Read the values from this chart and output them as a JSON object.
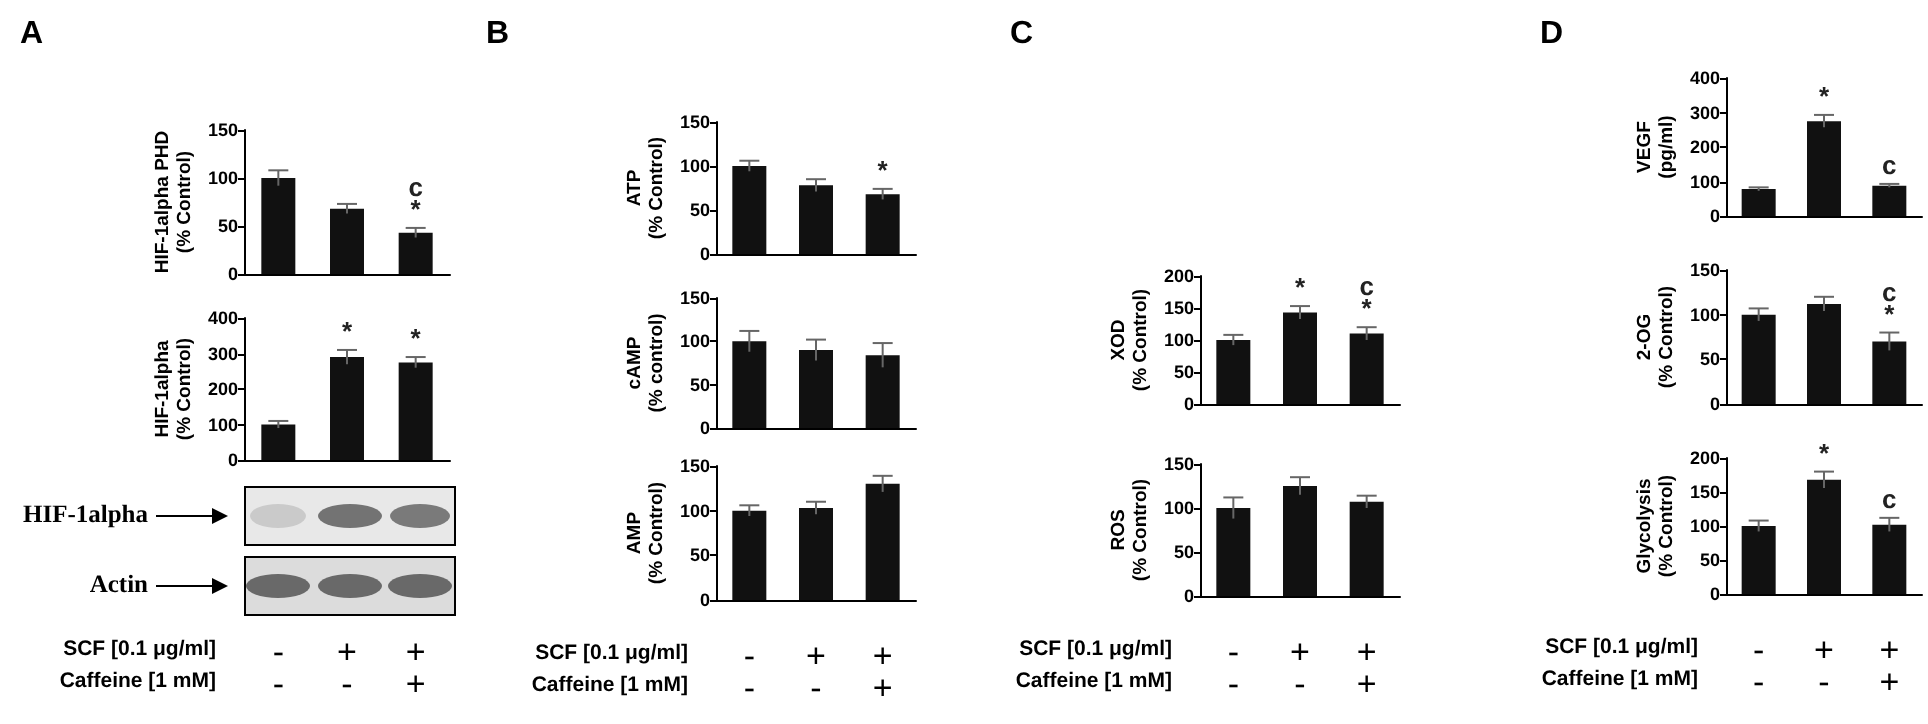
{
  "chart_data": [
    {
      "type": "bar",
      "title": "A",
      "ylabel": "HIF-1alpha PHD\n(% Control)",
      "categories": [
        "-\n-",
        "+\n-",
        "+\n+"
      ],
      "values": [
        100,
        68,
        43
      ],
      "errors": [
        8,
        5,
        5
      ],
      "color": "#111111",
      "ylim": [
        0,
        150
      ],
      "yticks": [
        0,
        50,
        100,
        150
      ],
      "tick_labels": "y",
      "annotations": [
        {
          "text": "*",
          "x": "+\n+",
          "y": 48
        },
        {
          "text": "c",
          "x": "+\n+",
          "y": 48
        }
      ]
    },
    {
      "type": "bar",
      "ylabel": "HIF-1alpha\n(% Control)",
      "categories": [
        "-\n-",
        "+\n-",
        "+\n+"
      ],
      "values": [
        100,
        290,
        275
      ],
      "errors": [
        10,
        20,
        15
      ],
      "color": "#111111",
      "ylim": [
        0,
        400
      ],
      "yticks": [
        0,
        100,
        200,
        300,
        400
      ],
      "annotations": [
        {
          "text": "*",
          "x": "+\n-",
          "y": 310
        },
        {
          "text": "*",
          "x": "+\n+",
          "y": 290
        },
        "HIF-1alpha",
        "Actin",
        "SCF [0.1 μg/ml]",
        "Caffeine [1 mM]"
      ]
    },
    {
      "type": "bar",
      "title": "B",
      "ylabel": "ATP\n(% Control)",
      "categories": [
        "-\n-",
        "+\n-",
        "+\n+"
      ],
      "values": [
        100,
        78,
        68
      ],
      "errors": [
        6,
        7,
        6
      ],
      "color": "#111111",
      "ylim": [
        0,
        150
      ],
      "yticks": [
        0,
        50,
        100,
        150
      ],
      "tick_labels": "y",
      "annotations": [
        {
          "text": "*",
          "x": "+\n+",
          "y": 74
        }
      ]
    },
    {
      "type": "bar",
      "ylabel": "cAMP\n(% control)",
      "categories": [
        "-\n-",
        "+\n-",
        "+\n+"
      ],
      "values": [
        100,
        90,
        84
      ],
      "errors": [
        12,
        12,
        14
      ],
      "color": "#111111",
      "ylim": [
        0,
        150
      ],
      "yticks": [
        0,
        50,
        100,
        150
      ],
      "tick_labels": "y"
    },
    {
      "type": "bar",
      "ylabel": "AMP\n(% Control)",
      "categories": [
        "-\n-",
        "+\n-",
        "+\n+"
      ],
      "values": [
        100,
        103,
        130
      ],
      "errors": [
        6,
        7,
        9
      ],
      "color": "#111111",
      "ylim": [
        0,
        150
      ],
      "yticks": [
        0,
        50,
        100,
        150
      ],
      "annotations": [
        "SCF [0.1 μg/ml]",
        "Caffeine [1 mM]"
      ]
    },
    {
      "type": "bar",
      "title": "C",
      "ylabel": "XOD\n(% Control)",
      "categories": [
        "-\n-",
        "+\n-",
        "+\n+"
      ],
      "values": [
        100,
        143,
        110
      ],
      "errors": [
        8,
        10,
        10
      ],
      "color": "#111111",
      "ylim": [
        0,
        200
      ],
      "yticks": [
        0,
        50,
        100,
        150,
        200
      ],
      "tick_labels": "y",
      "annotations": [
        {
          "text": "*",
          "x": "+\n-",
          "y": 153
        },
        {
          "text": "*",
          "x": "+\n+",
          "y": 120
        },
        {
          "text": "c",
          "x": "+\n+",
          "y": 120
        }
      ]
    },
    {
      "type": "bar",
      "ylabel": "ROS\n(% Control)",
      "categories": [
        "-\n-",
        "+\n-",
        "+\n+"
      ],
      "values": [
        100,
        125,
        107
      ],
      "errors": [
        12,
        10,
        7
      ],
      "color": "#111111",
      "ylim": [
        0,
        150
      ],
      "yticks": [
        0,
        50,
        100,
        150
      ],
      "annotations": [
        "SCF [0.1 μg/ml]",
        "Caffeine [1 mM]"
      ]
    },
    {
      "type": "bar",
      "title": "D",
      "ylabel": "VEGF\n(pg/ml)",
      "categories": [
        "-\n-",
        "+\n-",
        "+\n+"
      ],
      "values": [
        78,
        275,
        88
      ],
      "errors": [
        5,
        18,
        5
      ],
      "color": "#111111",
      "ylim": [
        0,
        400
      ],
      "yticks": [
        0,
        100,
        200,
        300,
        400
      ],
      "tick_labels": "y",
      "annotations": [
        {
          "text": "*",
          "x": "+\n-",
          "y": 293
        },
        {
          "text": "c",
          "x": "+\n+",
          "y": 93
        }
      ]
    },
    {
      "type": "bar",
      "ylabel": "2-OG\n(% Control)",
      "categories": [
        "-\n-",
        "+\n-",
        "+\n+"
      ],
      "values": [
        100,
        112,
        70
      ],
      "errors": [
        7,
        8,
        10
      ],
      "color": "#111111",
      "ylim": [
        0,
        150
      ],
      "yticks": [
        0,
        50,
        100,
        150
      ],
      "tick_labels": "y",
      "annotations": [
        {
          "text": "*",
          "x": "+\n+",
          "y": 80
        },
        {
          "text": "c",
          "x": "+\n+",
          "y": 80
        }
      ]
    },
    {
      "type": "bar",
      "ylabel": "Glycolysis\n(% Control)",
      "categories": [
        "-\n-",
        "+\n-",
        "+\n+"
      ],
      "values": [
        100,
        168,
        102
      ],
      "errors": [
        8,
        12,
        10
      ],
      "color": "#111111",
      "ylim": [
        0,
        200
      ],
      "yticks": [
        0,
        50,
        100,
        150,
        200
      ],
      "annotations": [
        {
          "text": "*",
          "x": "+\n-",
          "y": 180
        },
        {
          "text": "c",
          "x": "+\n+",
          "y": 112
        },
        "SCF [0.1 μg/ml]",
        "Caffeine [1 mM]"
      ]
    }
  ]
}
